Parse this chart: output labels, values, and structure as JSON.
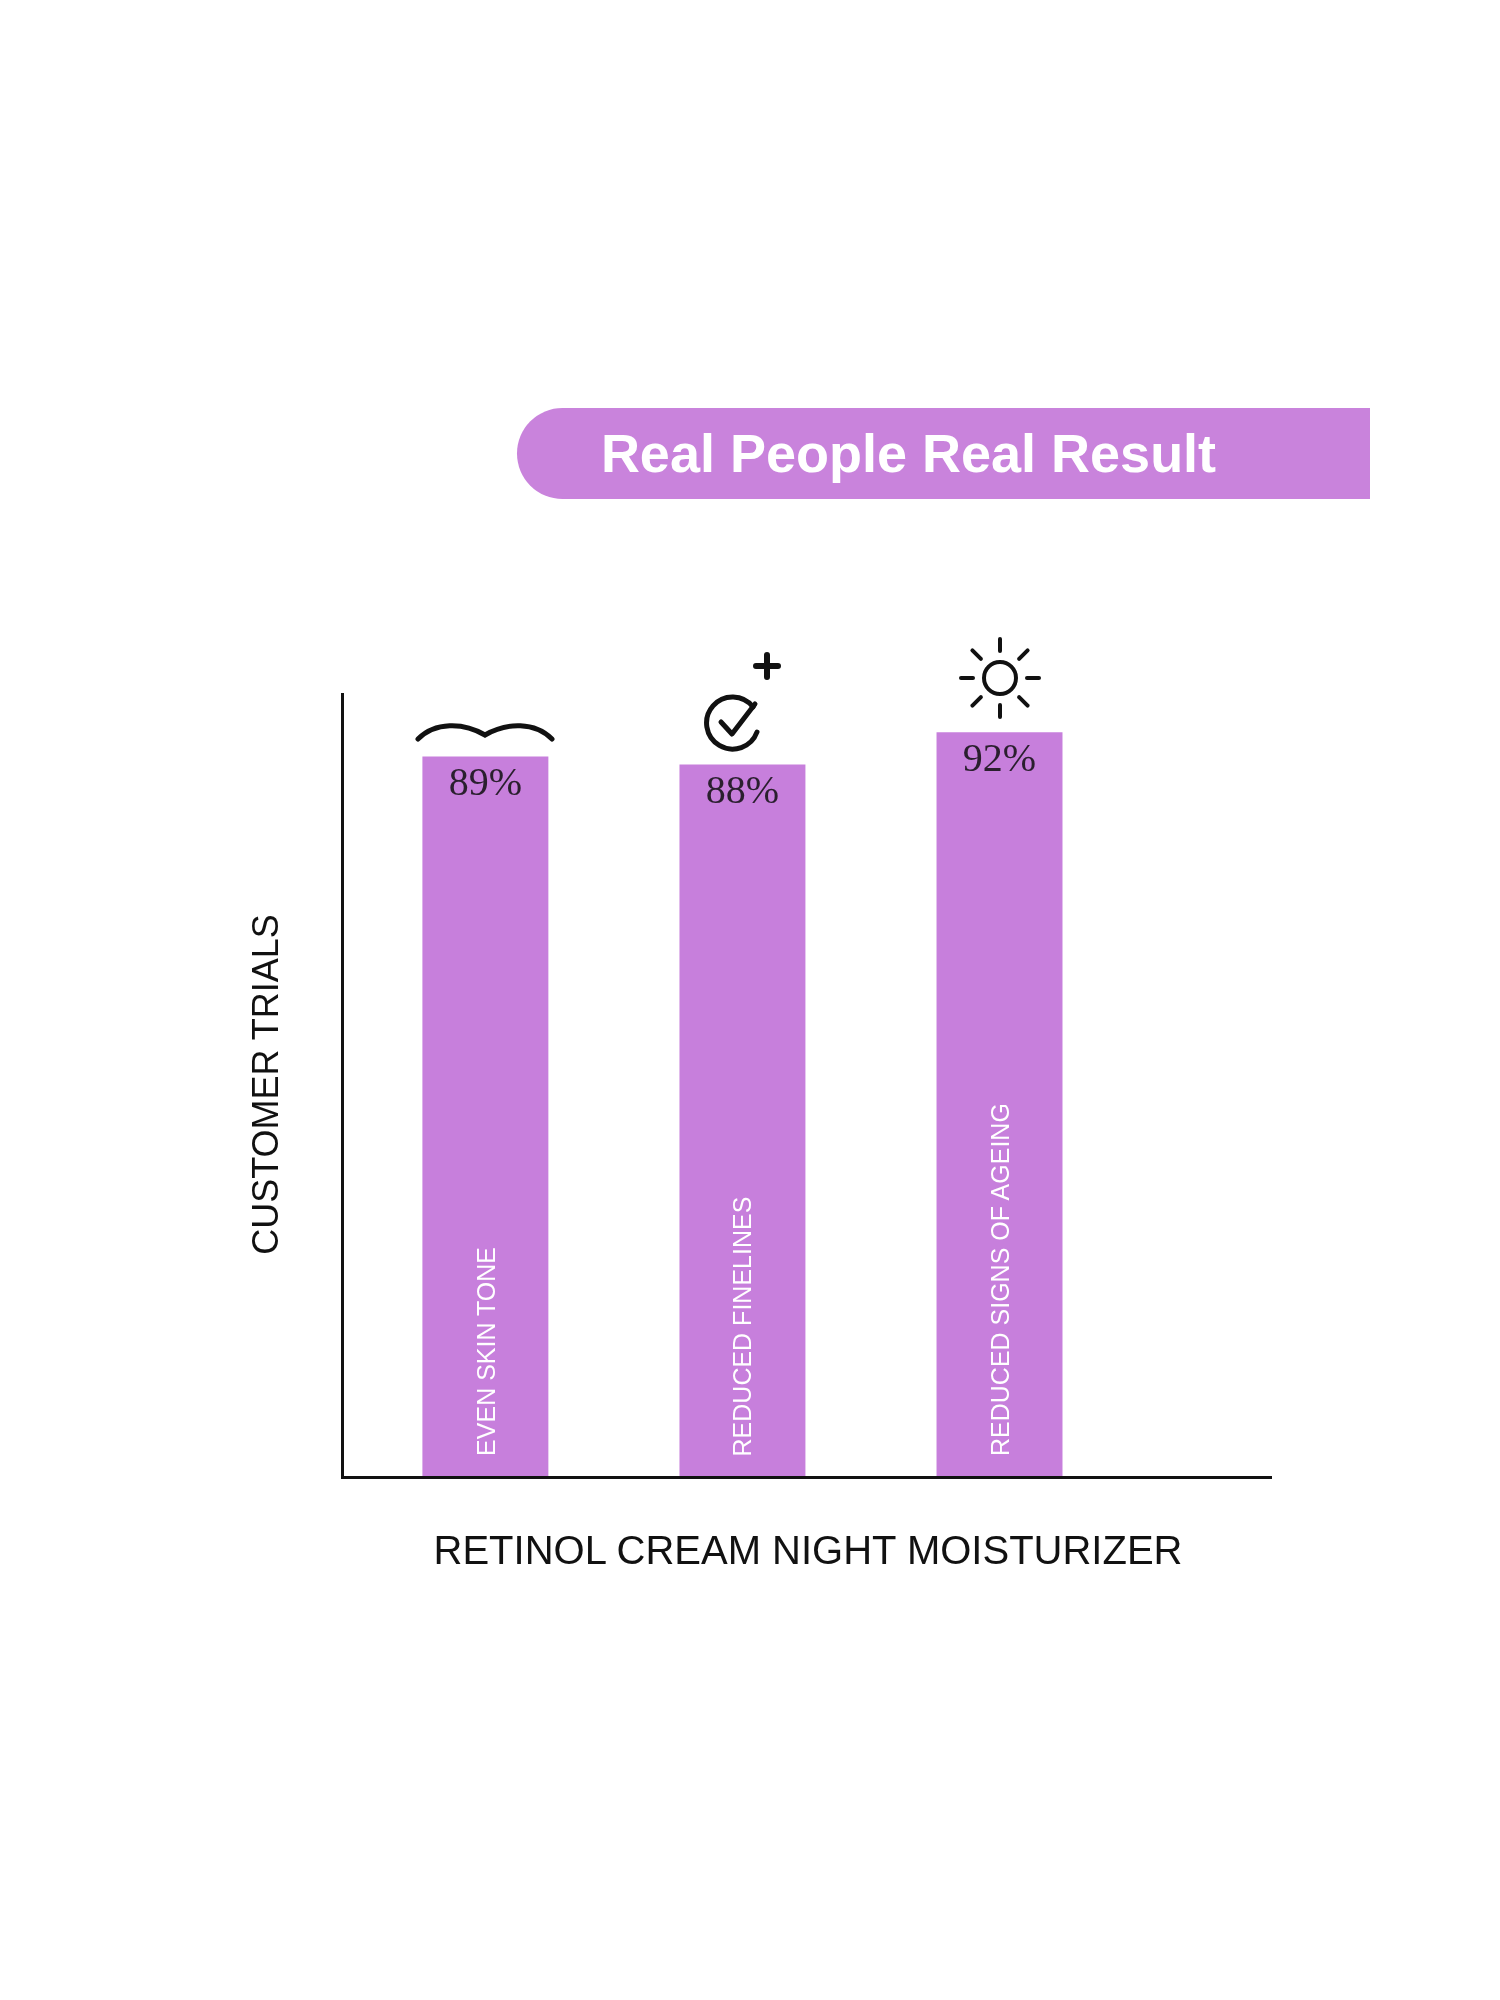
{
  "chart_data": {
    "type": "bar",
    "title": "Real People Real Result",
    "xlabel": "RETINOL CREAM NIGHT MOISTURIZER",
    "ylabel": "CUSTOMER TRIALS",
    "categories": [
      "EVEN SKIN TONE",
      "REDUCED FINELINES",
      "REDUCED SIGNS OF AGEING"
    ],
    "values": [
      89,
      88,
      92
    ],
    "value_labels": [
      "89%",
      "88%",
      "92%"
    ],
    "color": "#c77fdc",
    "tick_labels": "x"
  }
}
